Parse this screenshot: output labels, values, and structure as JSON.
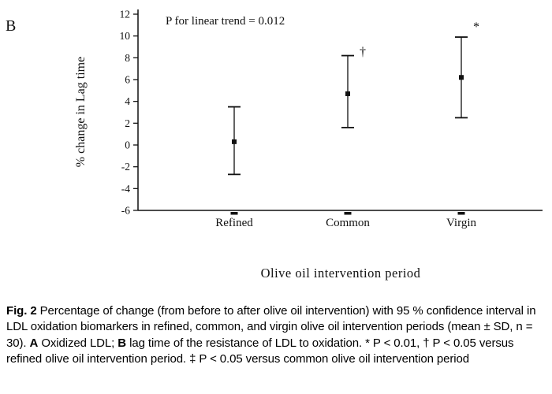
{
  "panel_label": "B",
  "chart_data": {
    "type": "errorbar",
    "trend_label": "P for linear trend = 0.012",
    "ylabel": "% change in Lag time",
    "xlabel": "Olive oil intervention period",
    "categories": [
      "Refined",
      "Common",
      "Virgin"
    ],
    "means": [
      0.3,
      4.7,
      6.2
    ],
    "upper": [
      3.5,
      8.2,
      9.9
    ],
    "lower": [
      -2.7,
      1.6,
      2.5
    ],
    "ylim": [
      -6,
      12
    ],
    "ytick_step": 2,
    "grid": false,
    "annotations": [
      {
        "category": "Common",
        "symbol": "†"
      },
      {
        "category": "Virgin",
        "symbol": "*"
      }
    ]
  },
  "caption": {
    "segments": [
      {
        "text": "Fig. 2",
        "bold": true
      },
      {
        "text": "  Percentage of change (from before to after olive oil intervention) with 95 % confidence interval in LDL oxidation biomarkers in refined, common, and virgin olive oil intervention periods (mean ± SD, n = 30). ",
        "bold": false
      },
      {
        "text": "A",
        "bold": true
      },
      {
        "text": " Oxidized LDL; ",
        "bold": false
      },
      {
        "text": "B",
        "bold": true
      },
      {
        "text": " lag time of the resistance of LDL to oxidation. * P < 0.01, † P < 0.05 versus refined olive oil intervention period. ‡ P < 0.05 versus common olive oil intervention period",
        "bold": false
      }
    ]
  }
}
